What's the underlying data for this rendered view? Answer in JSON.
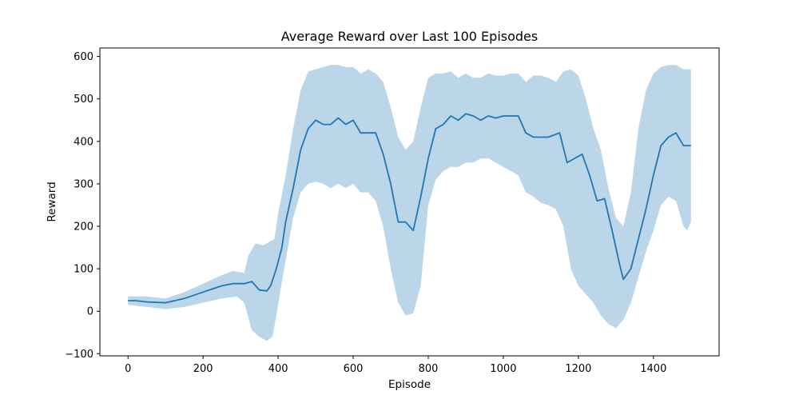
{
  "chart_data": {
    "type": "area",
    "title": "Average Reward over Last 100 Episodes",
    "xlabel": "Episode",
    "ylabel": "Reward",
    "xlim": [
      -75,
      1575
    ],
    "ylim": [
      -105,
      620
    ],
    "x_ticks": [
      0,
      200,
      400,
      600,
      800,
      1000,
      1200,
      1400
    ],
    "x_tick_labels": [
      "0",
      "200",
      "400",
      "600",
      "800",
      "1000",
      "1200",
      "1400"
    ],
    "y_ticks": [
      -100,
      0,
      100,
      200,
      300,
      400,
      500,
      600
    ],
    "y_tick_labels": [
      "−100",
      "0",
      "100",
      "200",
      "300",
      "400",
      "500",
      "600"
    ],
    "grid": false,
    "legend": "none",
    "colors": {
      "line": "#1f77b4",
      "band": "#1f77b4",
      "band_opacity": 0.3
    },
    "series": [
      {
        "role": "mean",
        "x": [
          0,
          20,
          50,
          100,
          150,
          200,
          250,
          280,
          310,
          330,
          350,
          370,
          380,
          395,
          410,
          420,
          440,
          460,
          480,
          500,
          520,
          540,
          560,
          580,
          600,
          620,
          640,
          660,
          680,
          700,
          720,
          740,
          760,
          780,
          800,
          820,
          840,
          860,
          880,
          900,
          920,
          940,
          960,
          980,
          1000,
          1020,
          1040,
          1060,
          1080,
          1100,
          1120,
          1150,
          1170,
          1190,
          1210,
          1230,
          1250,
          1270,
          1290,
          1310,
          1320,
          1340,
          1360,
          1380,
          1400,
          1420,
          1440,
          1460,
          1480,
          1500
        ],
        "y": [
          25,
          25,
          22,
          20,
          30,
          45,
          60,
          65,
          65,
          70,
          50,
          48,
          60,
          100,
          150,
          210,
          290,
          380,
          430,
          450,
          440,
          440,
          455,
          440,
          450,
          420,
          420,
          420,
          370,
          300,
          210,
          210,
          190,
          270,
          360,
          430,
          440,
          460,
          450,
          465,
          460,
          450,
          460,
          455,
          460,
          460,
          460,
          420,
          410,
          410,
          410,
          420,
          350,
          360,
          370,
          320,
          260,
          265,
          190,
          110,
          75,
          100,
          170,
          240,
          320,
          390,
          410,
          420,
          390,
          390
        ]
      },
      {
        "role": "upper",
        "x": [
          0,
          50,
          100,
          150,
          200,
          250,
          280,
          310,
          320,
          340,
          360,
          390,
          400,
          420,
          440,
          460,
          480,
          500,
          520,
          540,
          560,
          580,
          600,
          620,
          640,
          660,
          680,
          700,
          720,
          740,
          760,
          780,
          800,
          820,
          840,
          860,
          880,
          900,
          920,
          940,
          960,
          980,
          1000,
          1020,
          1040,
          1060,
          1080,
          1100,
          1120,
          1140,
          1160,
          1180,
          1200,
          1220,
          1240,
          1260,
          1280,
          1300,
          1320,
          1340,
          1360,
          1380,
          1400,
          1420,
          1440,
          1460,
          1480,
          1500
        ],
        "y": [
          35,
          35,
          30,
          45,
          65,
          85,
          95,
          90,
          130,
          160,
          155,
          170,
          230,
          320,
          430,
          520,
          565,
          570,
          575,
          580,
          580,
          575,
          575,
          560,
          570,
          560,
          540,
          480,
          410,
          380,
          400,
          480,
          550,
          560,
          560,
          565,
          550,
          560,
          550,
          550,
          560,
          555,
          555,
          560,
          560,
          540,
          555,
          555,
          550,
          540,
          565,
          570,
          555,
          500,
          430,
          380,
          290,
          220,
          200,
          280,
          430,
          520,
          560,
          575,
          580,
          580,
          570,
          570
        ]
      },
      {
        "role": "lower",
        "x": [
          0,
          50,
          100,
          150,
          200,
          250,
          290,
          310,
          330,
          350,
          370,
          385,
          395,
          410,
          420,
          440,
          460,
          480,
          500,
          520,
          540,
          560,
          580,
          600,
          620,
          640,
          660,
          680,
          700,
          720,
          740,
          760,
          780,
          800,
          820,
          840,
          860,
          880,
          900,
          920,
          940,
          960,
          980,
          1000,
          1020,
          1040,
          1060,
          1080,
          1100,
          1120,
          1140,
          1160,
          1180,
          1200,
          1220,
          1240,
          1260,
          1280,
          1300,
          1320,
          1340,
          1360,
          1380,
          1400,
          1420,
          1440,
          1460,
          1480,
          1490,
          1500
        ],
        "y": [
          15,
          10,
          5,
          10,
          20,
          30,
          35,
          20,
          -45,
          -60,
          -70,
          -60,
          -10,
          70,
          120,
          220,
          280,
          300,
          305,
          300,
          290,
          300,
          290,
          300,
          280,
          280,
          260,
          200,
          100,
          20,
          -10,
          -5,
          60,
          250,
          310,
          330,
          340,
          340,
          350,
          350,
          360,
          360,
          350,
          340,
          330,
          320,
          280,
          270,
          255,
          250,
          240,
          200,
          100,
          60,
          40,
          20,
          -10,
          -30,
          -40,
          -20,
          20,
          80,
          140,
          190,
          250,
          270,
          260,
          200,
          190,
          210
        ]
      }
    ]
  }
}
